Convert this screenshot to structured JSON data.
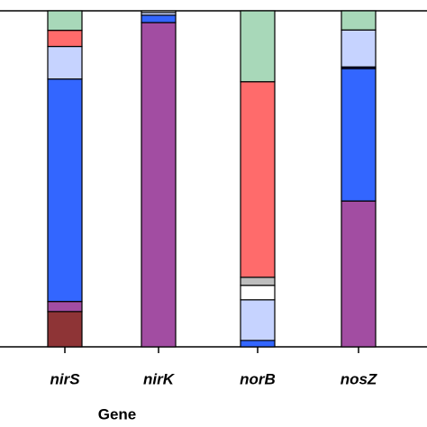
{
  "chart_data": {
    "type": "stacked_bar",
    "categories": [
      "nirS",
      "nirK",
      "norB",
      "nosZ"
    ],
    "xlabel": "Gene",
    "ylim": [
      0,
      100
    ],
    "series": [
      {
        "color": "#8e3436",
        "values": [
          10.5,
          0,
          0,
          0
        ]
      },
      {
        "color": "#a24da2",
        "values": [
          3,
          96.5,
          0,
          43.4
        ]
      },
      {
        "color": "#3366ff",
        "values": [
          66.2,
          2.2,
          1.9,
          39.4
        ]
      },
      {
        "color": "#1a237e",
        "values": [
          0,
          0,
          0,
          0.5
        ]
      },
      {
        "color": "#c6d3ff",
        "values": [
          9.7,
          0.8,
          12.1,
          11
        ]
      },
      {
        "color": "#ffffff",
        "values": [
          0,
          0.5,
          4.3,
          0
        ]
      },
      {
        "color": "#bdbdbd",
        "values": [
          0,
          0,
          2.4,
          0
        ]
      },
      {
        "color": "#ff6b6b",
        "values": [
          4.8,
          0,
          58.2,
          0
        ]
      },
      {
        "color": "#a8d8b9",
        "values": [
          5.8,
          0,
          21.1,
          5.7
        ]
      }
    ]
  }
}
